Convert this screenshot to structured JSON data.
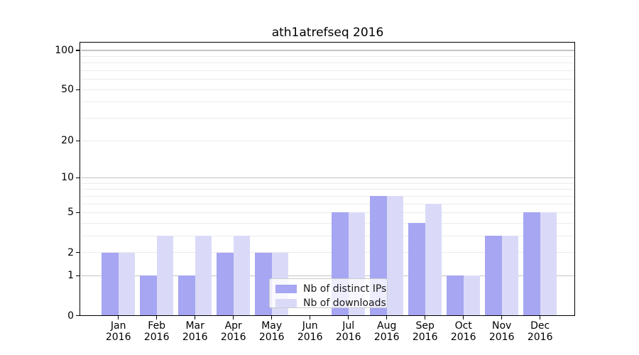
{
  "chart_data": {
    "type": "bar",
    "title": "ath1atrefseq 2016",
    "categories": [
      "Jan",
      "Feb",
      "Mar",
      "Apr",
      "May",
      "Jun",
      "Jul",
      "Aug",
      "Sep",
      "Oct",
      "Nov",
      "Dec"
    ],
    "year": "2016",
    "series": [
      {
        "name": "Nb of distinct IPs",
        "color": "#a6a6f2",
        "values": [
          2,
          1,
          1,
          2,
          2,
          0,
          5,
          7,
          4,
          1,
          3,
          5
        ]
      },
      {
        "name": "Nb of downloads",
        "color": "#dadaf8",
        "values": [
          2,
          3,
          3,
          3,
          2,
          0,
          5,
          7,
          6,
          1,
          3,
          5
        ]
      }
    ],
    "scale": "log1p",
    "ylim": [
      0,
      100
    ],
    "y_tick_labels": [
      0,
      1,
      2,
      5,
      10,
      20,
      50,
      100
    ],
    "y_major_gridlines": [
      1,
      10,
      100
    ],
    "y_minor_gridlines": [
      2,
      3,
      4,
      5,
      6,
      7,
      8,
      9,
      20,
      30,
      40,
      50,
      60,
      70,
      80,
      90
    ],
    "grid": true,
    "legend_position": "lower center",
    "xlabel": "",
    "ylabel": ""
  },
  "colors": {
    "major_grid": "#c4c4c4",
    "minor_grid": "#ebebeb",
    "axis": "#000000",
    "text": "#1a1a1a",
    "legend_border": "#cccccc",
    "legend_bg": "rgba(255,255,255,0.8)"
  }
}
